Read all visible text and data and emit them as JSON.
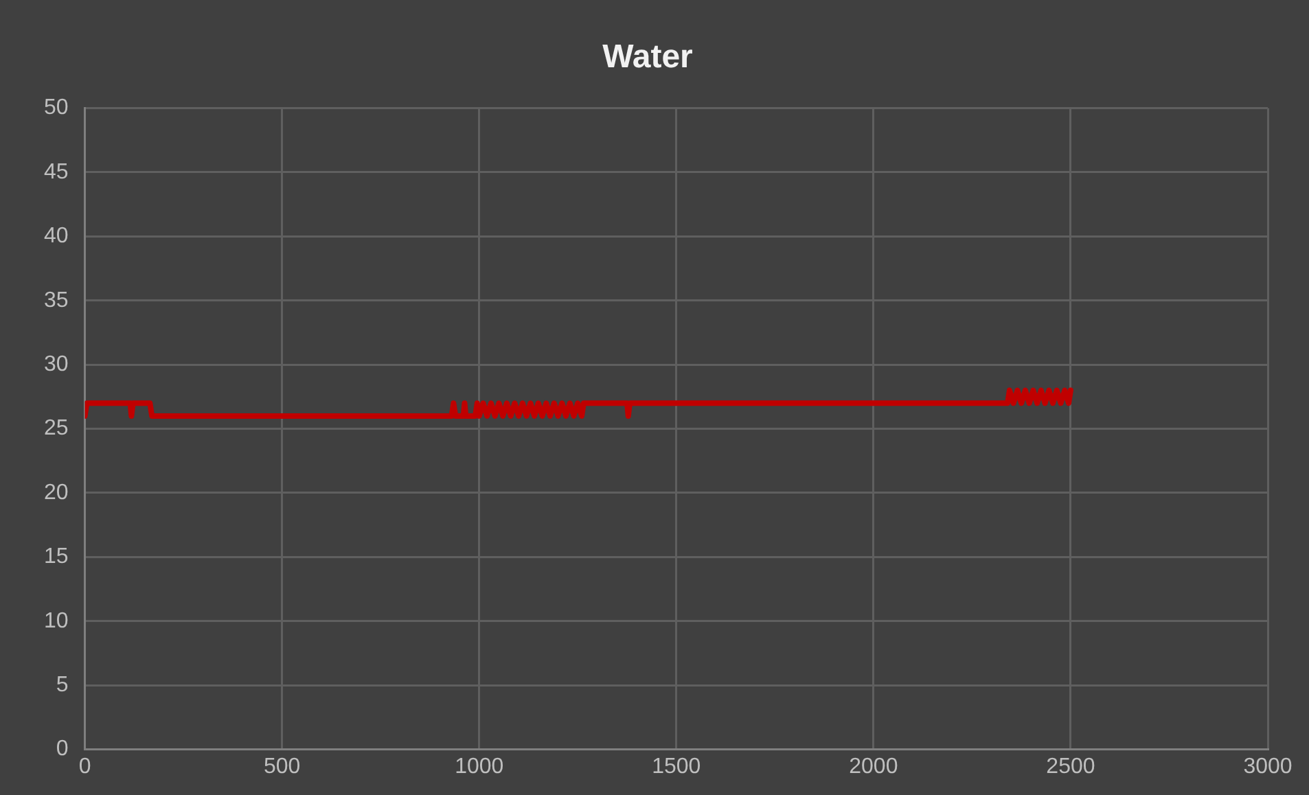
{
  "chart_data": {
    "type": "line",
    "title": "Water",
    "x": [
      0,
      5,
      115,
      118,
      122,
      165,
      170,
      930,
      935,
      940,
      960,
      963,
      966,
      990,
      995,
      1000,
      1010,
      1020,
      1030,
      1040,
      1050,
      1060,
      1070,
      1080,
      1090,
      1100,
      1110,
      1120,
      1130,
      1140,
      1150,
      1160,
      1170,
      1180,
      1190,
      1200,
      1210,
      1220,
      1230,
      1240,
      1250,
      1260,
      1265,
      1375,
      1378,
      1382,
      2340,
      2345,
      2355,
      2365,
      2375,
      2385,
      2395,
      2405,
      2415,
      2425,
      2435,
      2445,
      2455,
      2465,
      2475,
      2485,
      2495,
      2500
    ],
    "series": [
      {
        "color": "#c00000",
        "values": [
          26,
          27,
          27,
          26,
          27,
          27,
          26,
          26,
          27,
          26,
          26,
          27,
          26,
          26,
          27,
          26,
          27,
          26,
          27,
          26,
          27,
          26,
          27,
          26,
          27,
          26,
          27,
          26,
          27,
          26,
          27,
          26,
          27,
          26,
          27,
          26,
          27,
          26,
          27,
          26,
          27,
          26,
          27,
          27,
          26,
          27,
          27,
          28,
          27,
          28,
          27,
          28,
          27,
          28,
          27,
          28,
          27,
          28,
          27,
          28,
          27,
          28,
          27,
          28
        ]
      }
    ],
    "xlim": [
      0,
      3000
    ],
    "xticks": [
      0,
      500,
      1000,
      1500,
      2000,
      2500,
      3000
    ],
    "ylim": [
      0,
      50
    ],
    "yticks": [
      0,
      5,
      10,
      15,
      20,
      25,
      30,
      35,
      40,
      45,
      50
    ],
    "grid": true,
    "legend": false,
    "marker": "none",
    "line_style": "solid"
  }
}
